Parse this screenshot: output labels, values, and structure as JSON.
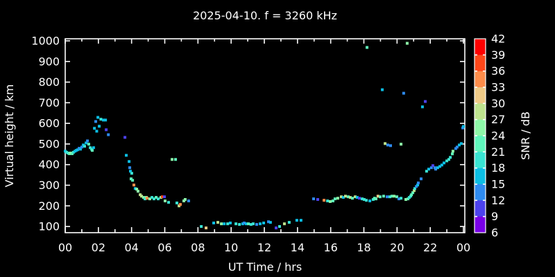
{
  "window": {
    "background": "#000000",
    "text_color": "#ffffff"
  },
  "chart_data": {
    "type": "scatter",
    "title": "2025-04-10. f = 3260 kHz",
    "xlabel": "UT Time / hrs",
    "ylabel": "Virtual height / km",
    "grid": false,
    "background": "#000000",
    "axis_color": "#ffffff",
    "marker": "square",
    "marker_size_px": 4,
    "xlim": [
      0,
      24
    ],
    "ylim": [
      70,
      1010
    ],
    "x_tick_values": [
      0,
      2,
      4,
      6,
      8,
      10,
      12,
      14,
      16,
      18,
      20,
      22,
      24
    ],
    "x_tick_labels": [
      "00",
      "02",
      "04",
      "06",
      "08",
      "10",
      "12",
      "14",
      "16",
      "18",
      "20",
      "22",
      "00"
    ],
    "x_minor_ticks": [
      1,
      3,
      5,
      7,
      9,
      11,
      13,
      15,
      17,
      19,
      21,
      23
    ],
    "y_tick_values": [
      100,
      200,
      300,
      400,
      500,
      600,
      700,
      800,
      900,
      1000
    ],
    "y_tick_labels": [
      "100",
      "200",
      "300",
      "400",
      "500",
      "600",
      "700",
      "800",
      "900",
      "1000"
    ],
    "colorbar": {
      "label": "SNR / dB",
      "min": 6,
      "max": 42,
      "tick_step": 3,
      "tick_labels": [
        "6",
        "9",
        "12",
        "15",
        "18",
        "21",
        "24",
        "27",
        "30",
        "33",
        "36",
        "39",
        "42"
      ],
      "segment_colors_bottom_to_top": [
        "#7900E7",
        "#4D42EE",
        "#2E8BF0",
        "#0CBEE4",
        "#39E4D2",
        "#5FF6BB",
        "#8EF8A8",
        "#BEE38E",
        "#EFCA87",
        "#FD8D4B",
        "#FF4719",
        "#FF0000"
      ]
    },
    "points_format": [
      "ut_hours",
      "virtual_height_km",
      "snr_db"
    ],
    "points": [
      [
        0.0,
        465,
        16
      ],
      [
        0.08,
        460,
        19
      ],
      [
        0.17,
        456,
        19
      ],
      [
        0.25,
        453,
        22
      ],
      [
        0.33,
        456,
        25
      ],
      [
        0.42,
        453,
        22
      ],
      [
        0.5,
        460,
        19
      ],
      [
        0.59,
        465,
        16
      ],
      [
        0.67,
        469,
        16
      ],
      [
        0.75,
        472,
        16
      ],
      [
        0.84,
        479,
        13
      ],
      [
        0.92,
        475,
        16
      ],
      [
        1.0,
        485,
        13
      ],
      [
        1.09,
        495,
        16
      ],
      [
        1.17,
        489,
        19
      ],
      [
        1.26,
        505,
        16
      ],
      [
        1.34,
        515,
        13
      ],
      [
        1.42,
        499,
        22
      ],
      [
        1.51,
        482,
        19
      ],
      [
        1.59,
        475,
        19
      ],
      [
        1.63,
        469,
        22
      ],
      [
        1.71,
        482,
        16
      ],
      [
        1.76,
        576,
        16
      ],
      [
        1.84,
        609,
        13
      ],
      [
        1.9,
        562,
        16
      ],
      [
        1.97,
        629,
        16
      ],
      [
        2.05,
        586,
        16
      ],
      [
        2.15,
        620,
        19
      ],
      [
        2.3,
        616,
        16
      ],
      [
        2.43,
        616,
        16
      ],
      [
        2.47,
        569,
        10
      ],
      [
        2.6,
        545,
        13
      ],
      [
        3.6,
        532,
        10
      ],
      [
        3.68,
        445,
        16
      ],
      [
        3.85,
        415,
        16
      ],
      [
        3.89,
        385,
        13
      ],
      [
        3.93,
        368,
        16
      ],
      [
        3.97,
        331,
        22
      ],
      [
        4.01,
        358,
        19
      ],
      [
        4.06,
        324,
        22
      ],
      [
        4.14,
        301,
        34
      ],
      [
        4.22,
        284,
        16
      ],
      [
        4.31,
        281,
        25
      ],
      [
        4.39,
        271,
        25
      ],
      [
        4.52,
        254,
        28
      ],
      [
        4.6,
        247,
        28
      ],
      [
        4.72,
        241,
        25
      ],
      [
        4.81,
        234,
        19
      ],
      [
        4.89,
        241,
        25
      ],
      [
        4.93,
        237,
        34
      ],
      [
        5.1,
        234,
        25
      ],
      [
        5.23,
        241,
        19
      ],
      [
        5.35,
        234,
        19
      ],
      [
        5.48,
        241,
        22
      ],
      [
        5.6,
        234,
        19
      ],
      [
        5.77,
        241,
        25
      ],
      [
        5.85,
        244,
        37
      ],
      [
        5.98,
        244,
        10
      ],
      [
        6.02,
        224,
        25
      ],
      [
        6.23,
        217,
        19
      ],
      [
        6.44,
        425,
        25
      ],
      [
        6.65,
        425,
        22
      ],
      [
        6.73,
        214,
        19
      ],
      [
        6.86,
        200,
        28
      ],
      [
        6.94,
        207,
        34
      ],
      [
        7.15,
        224,
        25
      ],
      [
        7.23,
        231,
        25
      ],
      [
        7.44,
        224,
        13
      ],
      [
        8.2,
        100,
        19
      ],
      [
        8.49,
        93,
        31
      ],
      [
        8.95,
        117,
        16
      ],
      [
        9.2,
        120,
        28
      ],
      [
        9.41,
        113,
        25
      ],
      [
        9.58,
        113,
        16
      ],
      [
        9.79,
        113,
        19
      ],
      [
        9.95,
        117,
        16
      ],
      [
        10.29,
        113,
        19
      ],
      [
        10.5,
        110,
        19
      ],
      [
        10.7,
        113,
        16
      ],
      [
        10.79,
        117,
        13
      ],
      [
        10.91,
        113,
        16
      ],
      [
        11.04,
        113,
        22
      ],
      [
        11.2,
        110,
        19
      ],
      [
        11.33,
        113,
        19
      ],
      [
        11.54,
        110,
        13
      ],
      [
        11.75,
        113,
        16
      ],
      [
        11.96,
        117,
        16
      ],
      [
        12.25,
        123,
        13
      ],
      [
        12.37,
        120,
        16
      ],
      [
        12.71,
        93,
        10
      ],
      [
        12.92,
        100,
        19
      ],
      [
        13.21,
        113,
        28
      ],
      [
        13.5,
        120,
        19
      ],
      [
        13.96,
        130,
        16
      ],
      [
        14.21,
        130,
        16
      ],
      [
        14.97,
        234,
        13
      ],
      [
        15.22,
        231,
        10
      ],
      [
        15.6,
        227,
        34
      ],
      [
        15.81,
        224,
        19
      ],
      [
        15.97,
        221,
        25
      ],
      [
        16.14,
        224,
        22
      ],
      [
        16.26,
        234,
        22
      ],
      [
        16.43,
        237,
        25
      ],
      [
        16.64,
        244,
        28
      ],
      [
        16.76,
        241,
        16
      ],
      [
        16.89,
        247,
        28
      ],
      [
        17.06,
        244,
        22
      ],
      [
        17.18,
        241,
        28
      ],
      [
        17.31,
        237,
        22
      ],
      [
        17.48,
        244,
        28
      ],
      [
        17.6,
        241,
        16
      ],
      [
        17.73,
        237,
        10
      ],
      [
        17.9,
        234,
        19
      ],
      [
        18.02,
        231,
        19
      ],
      [
        18.15,
        227,
        19
      ],
      [
        18.36,
        224,
        16
      ],
      [
        18.56,
        231,
        19
      ],
      [
        18.64,
        237,
        22
      ],
      [
        18.73,
        234,
        22
      ],
      [
        18.85,
        247,
        31
      ],
      [
        18.98,
        244,
        22
      ],
      [
        19.19,
        247,
        22
      ],
      [
        19.4,
        244,
        13
      ],
      [
        19.57,
        244,
        19
      ],
      [
        19.69,
        247,
        22
      ],
      [
        19.82,
        247,
        25
      ],
      [
        19.99,
        244,
        22
      ],
      [
        20.11,
        234,
        13
      ],
      [
        20.24,
        237,
        19
      ],
      [
        20.53,
        231,
        25
      ],
      [
        20.66,
        234,
        22
      ],
      [
        20.74,
        241,
        19
      ],
      [
        20.82,
        247,
        19
      ],
      [
        20.87,
        254,
        22
      ],
      [
        20.95,
        264,
        22
      ],
      [
        21.03,
        274,
        28
      ],
      [
        21.07,
        284,
        19
      ],
      [
        21.16,
        294,
        13
      ],
      [
        21.24,
        301,
        16
      ],
      [
        21.28,
        311,
        13
      ],
      [
        21.45,
        331,
        13
      ],
      [
        21.78,
        368,
        19
      ],
      [
        21.91,
        378,
        16
      ],
      [
        22.07,
        385,
        13
      ],
      [
        22.16,
        395,
        10
      ],
      [
        22.28,
        385,
        13
      ],
      [
        22.33,
        378,
        13
      ],
      [
        22.45,
        385,
        16
      ],
      [
        22.58,
        391,
        16
      ],
      [
        22.7,
        398,
        16
      ],
      [
        22.83,
        408,
        16
      ],
      [
        23.0,
        418,
        19
      ],
      [
        23.12,
        425,
        19
      ],
      [
        23.21,
        435,
        19
      ],
      [
        23.33,
        452,
        22
      ],
      [
        23.37,
        465,
        25
      ],
      [
        23.54,
        478,
        13
      ],
      [
        23.62,
        485,
        13
      ],
      [
        23.75,
        495,
        16
      ],
      [
        23.87,
        502,
        16
      ],
      [
        23.96,
        578,
        13
      ],
      [
        24.0,
        585,
        16
      ],
      [
        18.19,
        968,
        22
      ],
      [
        20.61,
        988,
        25
      ],
      [
        19.11,
        763,
        16
      ],
      [
        20.4,
        746,
        13
      ],
      [
        21.53,
        680,
        16
      ],
      [
        21.7,
        706,
        10
      ],
      [
        19.28,
        502,
        28
      ],
      [
        19.44,
        495,
        13
      ],
      [
        19.61,
        492,
        13
      ],
      [
        20.24,
        499,
        25
      ]
    ]
  }
}
